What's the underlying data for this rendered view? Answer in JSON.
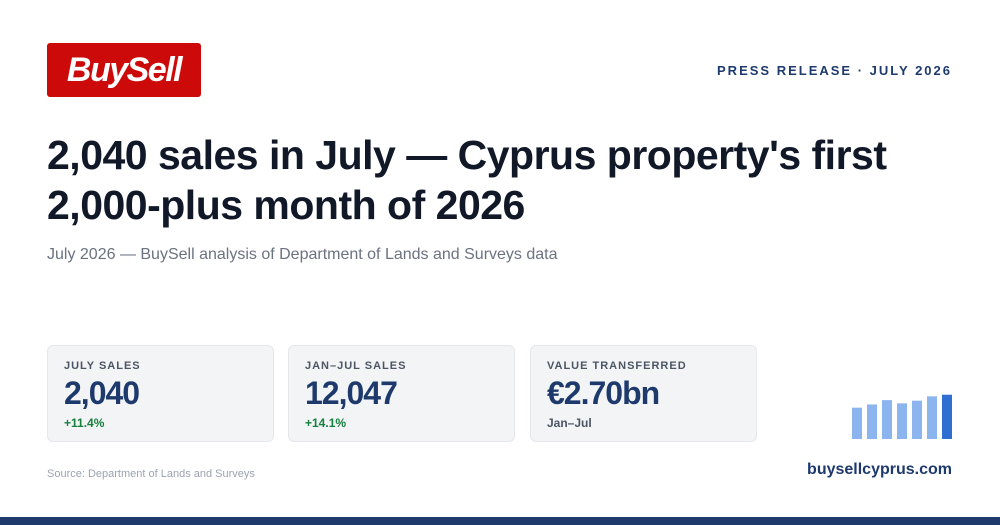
{
  "brand": {
    "logo_text": "BuySell",
    "color": "#cc0a0a"
  },
  "header": {
    "tag": "PRESS RELEASE · JULY 2026"
  },
  "headline": "2,040 sales in July — Cyprus property's first 2,000-plus month of 2026",
  "subtitle": "July 2026 — BuySell analysis of Department of Lands and Surveys data",
  "stats": [
    {
      "label": "JULY SALES",
      "value": "2,040",
      "delta": "+11.4%"
    },
    {
      "label": "JAN–JUL SALES",
      "value": "12,047",
      "delta": "+14.1%"
    },
    {
      "label": "VALUE TRANSFERRED",
      "value": "€2.70bn",
      "delta": "Jan–Jul"
    }
  ],
  "chart_data": {
    "type": "bar",
    "values": [
      0.58,
      0.64,
      0.72,
      0.66,
      0.71,
      0.79,
      0.82
    ],
    "bar_color": "#8cb4ee",
    "highlight_color": "#2f6fd1",
    "highlight_index": 6
  },
  "footer": {
    "source": "Source: Department of Lands and Surveys",
    "site": "buysellcyprus.com"
  },
  "colors": {
    "navy": "#1e3a6d",
    "positive": "#15803d"
  }
}
